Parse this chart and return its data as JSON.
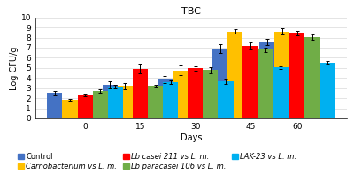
{
  "title": "TBC",
  "xlabel": "Days",
  "ylabel": "Log CFU/g",
  "days": [
    0,
    15,
    30,
    45,
    60
  ],
  "ylim": [
    0,
    10
  ],
  "yticks": [
    0,
    1,
    2,
    3,
    4,
    5,
    6,
    7,
    8,
    9,
    10
  ],
  "series": [
    {
      "label": "Control",
      "color": "#4472C4",
      "values": [
        2.5,
        3.3,
        3.85,
        6.9,
        7.6
      ],
      "errors": [
        0.2,
        0.35,
        0.35,
        0.45,
        0.3
      ]
    },
    {
      "label": "Carnobacterium vs L. m.",
      "color": "#FFC000",
      "values": [
        1.85,
        3.2,
        4.75,
        8.6,
        8.6
      ],
      "errors": [
        0.1,
        0.3,
        0.5,
        0.2,
        0.3
      ]
    },
    {
      "label": "Lb casei 211 vs L. m.",
      "color": "#FF0000",
      "values": [
        2.3,
        4.9,
        4.95,
        7.2,
        8.45
      ],
      "errors": [
        0.15,
        0.4,
        0.25,
        0.35,
        0.2
      ]
    },
    {
      "label": "Lb paracasei 106 vs L. m.",
      "color": "#70AD47",
      "values": [
        2.7,
        3.2,
        4.8,
        6.8,
        8.05
      ],
      "errors": [
        0.2,
        0.15,
        0.3,
        0.2,
        0.25
      ]
    },
    {
      "label": "LAK-23 vs L. m.",
      "color": "#00B0F0",
      "values": [
        3.15,
        3.6,
        3.65,
        5.05,
        5.5
      ],
      "errors": [
        0.15,
        0.2,
        0.2,
        0.15,
        0.2
      ]
    }
  ],
  "legend_order": [
    0,
    1,
    2,
    3,
    4
  ],
  "bar_width": 0.055,
  "group_positions": [
    0.18,
    0.38,
    0.58,
    0.78,
    0.95
  ],
  "background_color": "#FFFFFF",
  "grid_color": "#D9D9D9",
  "title_fontsize": 8,
  "axis_fontsize": 7,
  "tick_fontsize": 6.5,
  "legend_fontsize": 6
}
